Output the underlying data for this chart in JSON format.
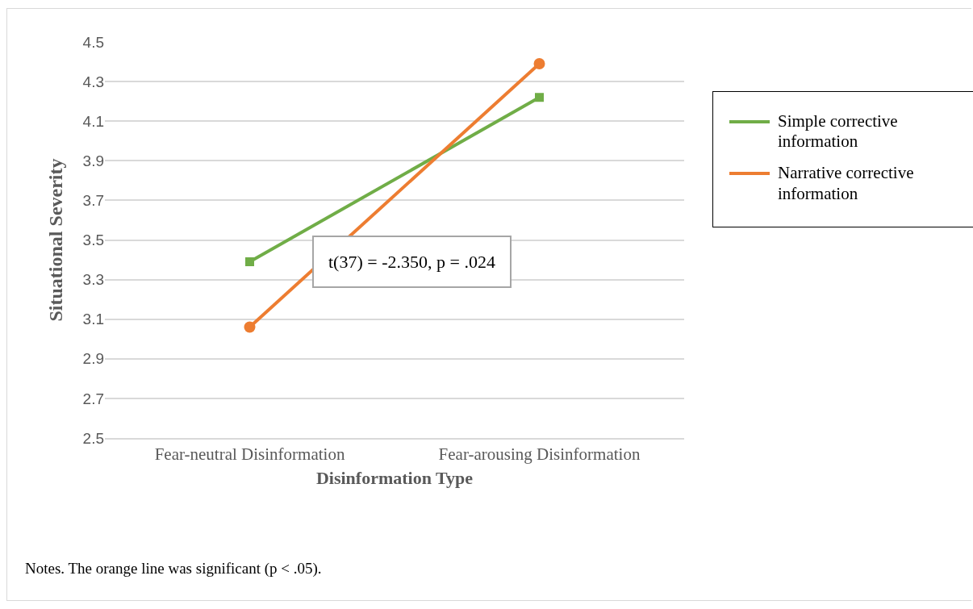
{
  "chart_data": {
    "type": "line",
    "xlabel": "Disinformation Type",
    "ylabel": "Situational Severity",
    "categories": [
      "Fear-neutral Disinformation",
      "Fear-arousing Disinformation"
    ],
    "series": [
      {
        "name": "Simple corrective information",
        "color": "#70ad47",
        "marker": "square",
        "values": [
          3.39,
          4.22
        ]
      },
      {
        "name": "Narrative corrective information",
        "color": "#ed7d31",
        "marker": "circle",
        "values": [
          3.06,
          4.39
        ]
      }
    ],
    "ylim": [
      2.5,
      4.5
    ],
    "yticks": [
      2.5,
      2.7,
      2.9,
      3.1,
      3.3,
      3.5,
      3.7,
      3.9,
      4.1,
      4.3,
      4.5
    ],
    "grid": "y",
    "legend": "right",
    "line_style": "solid",
    "annotations": [
      "t(37) = -2.350, p = .024",
      "Notes. The orange line was significant (p < .05)."
    ]
  }
}
